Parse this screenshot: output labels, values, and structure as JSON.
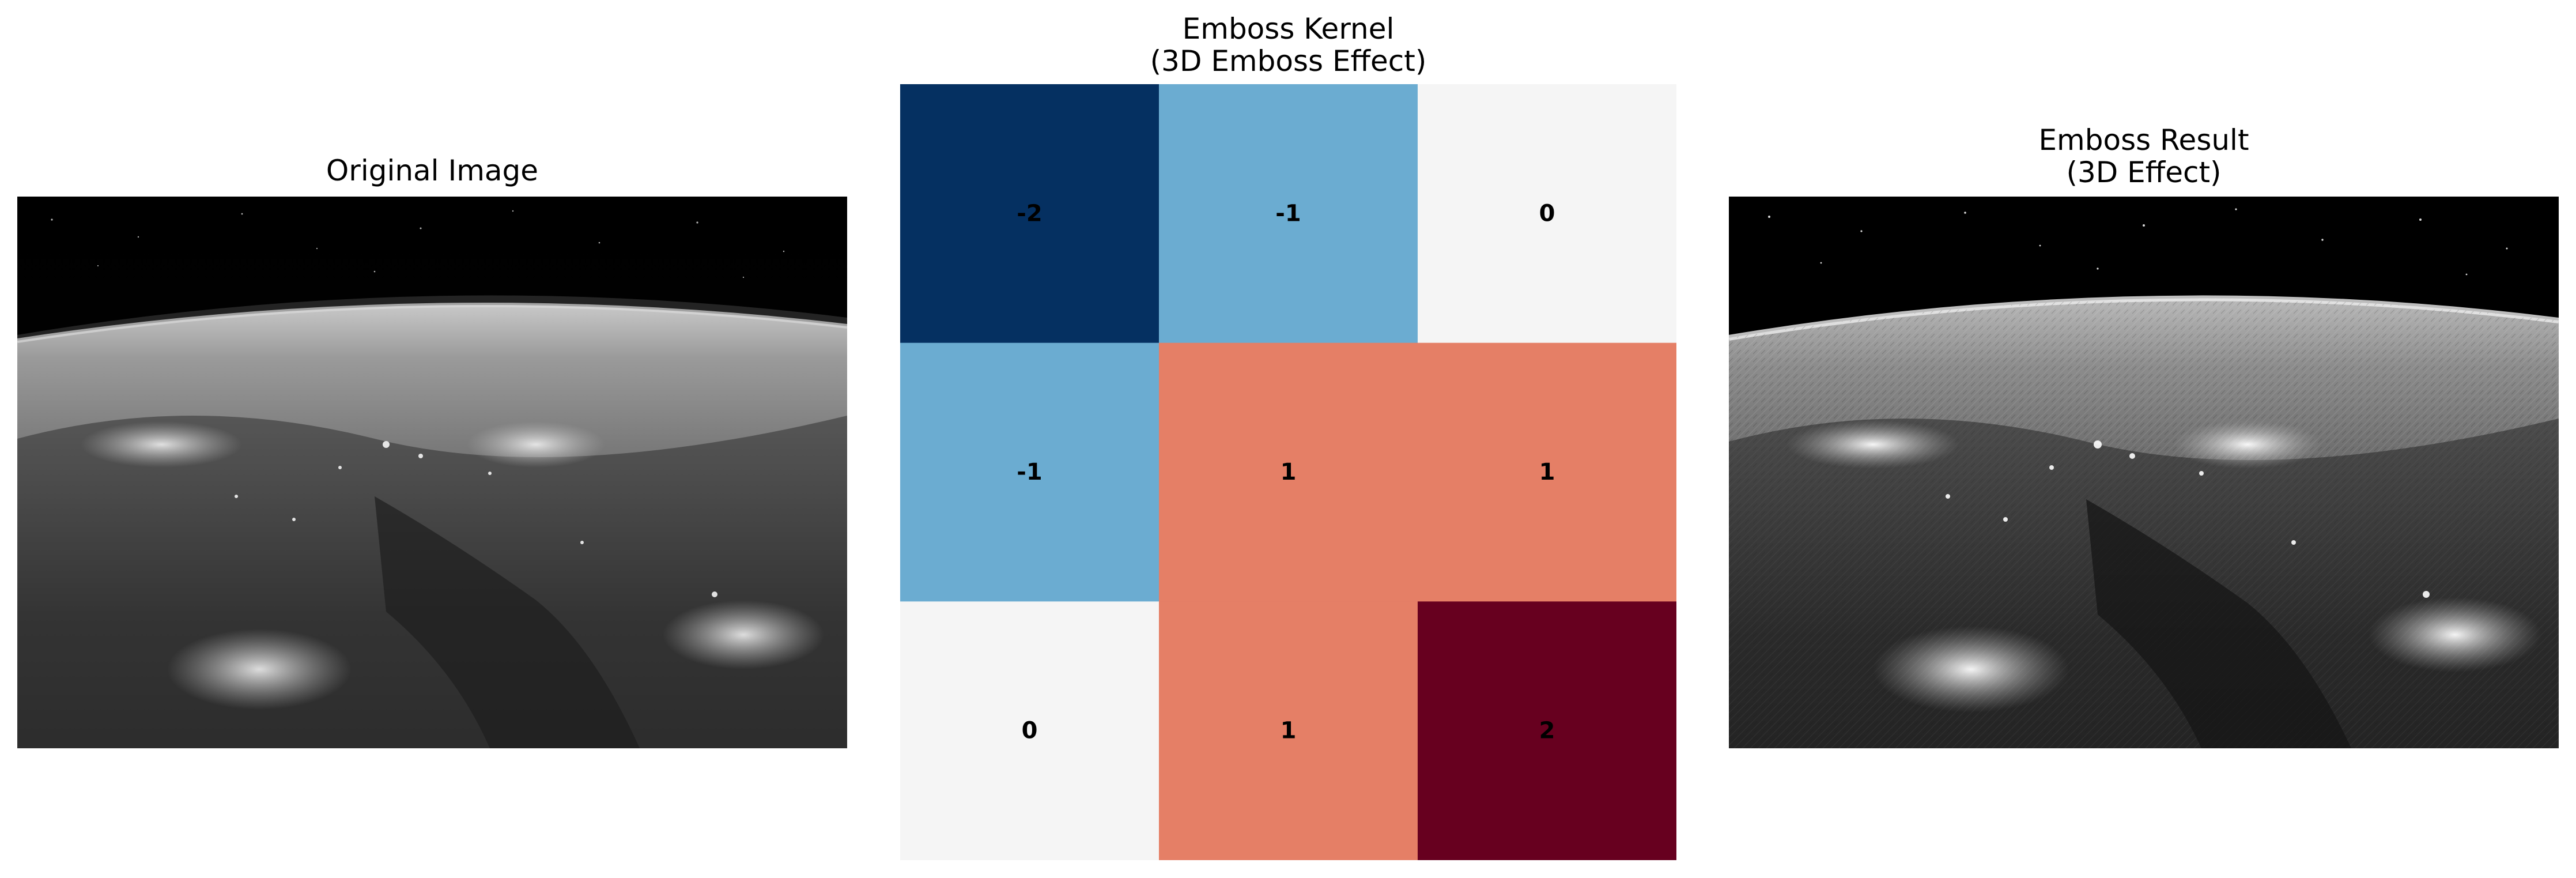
{
  "panels": {
    "original": {
      "title": "Original Image"
    },
    "kernel": {
      "title_line1": "Emboss Kernel",
      "title_line2": "(3D Emboss Effect)"
    },
    "result": {
      "title_line1": "Emboss Result",
      "title_line2": "(3D Effect)"
    }
  },
  "chart_data": {
    "type": "heatmap",
    "title": "Emboss Kernel\n(3D Emboss Effect)",
    "colormap": "RdBu_r",
    "vmin": -2,
    "vmax": 2,
    "rows": 3,
    "cols": 3,
    "values": [
      [
        -2,
        -1,
        0
      ],
      [
        -1,
        1,
        1
      ],
      [
        0,
        1,
        2
      ]
    ],
    "cell_labels": [
      [
        "-2",
        "-1",
        "0"
      ],
      [
        "-1",
        "1",
        "1"
      ],
      [
        "0",
        "1",
        "2"
      ]
    ],
    "colors": {
      "-2": "#053061",
      "-1": "#6bacd1",
      "0": "#f5f5f5",
      "1": "#e57f66",
      "2": "#67001f"
    },
    "axis": "off"
  }
}
